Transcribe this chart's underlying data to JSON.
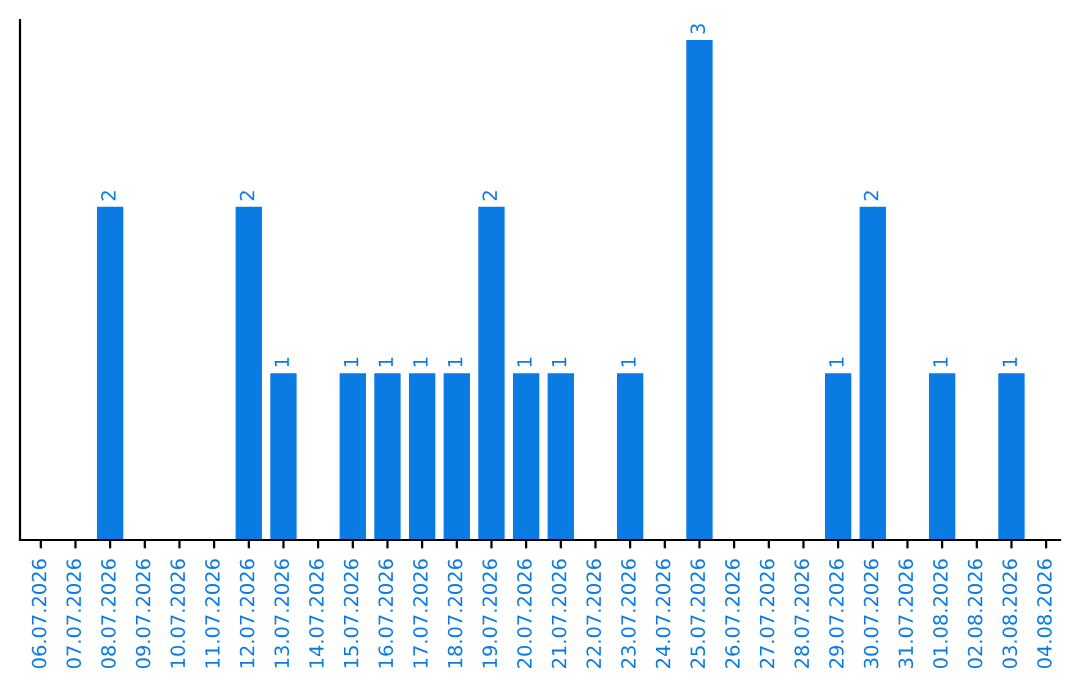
{
  "chart_data": {
    "type": "bar",
    "categories": [
      "06.07.2026",
      "07.07.2026",
      "08.07.2026",
      "09.07.2026",
      "10.07.2026",
      "11.07.2026",
      "12.07.2026",
      "13.07.2026",
      "14.07.2026",
      "15.07.2026",
      "16.07.2026",
      "17.07.2026",
      "18.07.2026",
      "19.07.2026",
      "20.07.2026",
      "21.07.2026",
      "22.07.2026",
      "23.07.2026",
      "24.07.2026",
      "25.07.2026",
      "26.07.2026",
      "27.07.2026",
      "28.07.2026",
      "29.07.2026",
      "30.07.2026",
      "31.07.2026",
      "01.08.2026",
      "02.08.2026",
      "03.08.2026",
      "04.08.2026"
    ],
    "values": [
      0,
      0,
      2,
      0,
      0,
      0,
      2,
      1,
      0,
      1,
      1,
      1,
      1,
      2,
      1,
      1,
      0,
      1,
      0,
      3,
      0,
      0,
      0,
      1,
      2,
      0,
      1,
      0,
      1,
      0
    ],
    "value_labels": [
      null,
      null,
      "2",
      null,
      null,
      null,
      "2",
      "1",
      null,
      "1",
      "1",
      "1",
      "1",
      "2",
      "1",
      "1",
      null,
      "1",
      null,
      "3",
      null,
      null,
      null,
      "1",
      "2",
      null,
      "1",
      null,
      "1",
      null
    ],
    "color": "#0a7be3",
    "ylim": [
      0,
      3.12
    ],
    "tick_labels": "x",
    "grid": false,
    "legend": false
  }
}
